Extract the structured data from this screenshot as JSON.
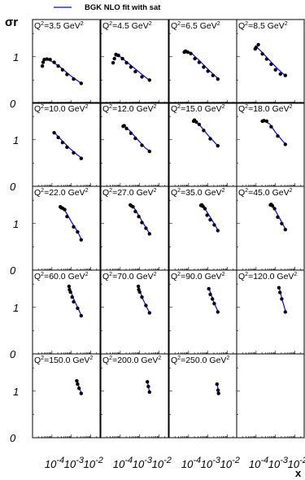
{
  "chart_data": {
    "type": "scatter",
    "legend": {
      "label": "BGK NLO fit with sat",
      "color": "#0000ff",
      "position": "top-center"
    },
    "ylabel": "σr",
    "xlabel": "x",
    "x_tick_labels": [
      "10",
      "-4",
      "10",
      "-3",
      "10",
      "-2"
    ],
    "y_tick_labels": [
      "0",
      "1"
    ],
    "xscale": "log",
    "xlim": [
      1e-05,
      0.03
    ],
    "ylim": [
      0,
      1.8
    ],
    "grid": false,
    "colors": {
      "data": "#000000",
      "fit": "#0000ff",
      "frame": "#000000"
    },
    "panels": [
      {
        "label_prefix": "Q",
        "label_sup": "2",
        "label_value": "=3.5 GeV",
        "label_unit_sup": "2",
        "points": [
          [
            3.2e-05,
            0.8
          ],
          [
            3.5e-05,
            0.88
          ],
          [
            4e-05,
            0.94
          ],
          [
            5.5e-05,
            0.95
          ],
          [
            8e-05,
            0.94
          ],
          [
            0.00013,
            0.88
          ],
          [
            0.00021,
            0.8
          ],
          [
            0.00035,
            0.72
          ],
          [
            0.0006,
            0.62
          ],
          [
            0.0013,
            0.52
          ],
          [
            0.0032,
            0.43
          ]
        ],
        "fit": [
          [
            4e-05,
            0.96
          ],
          [
            0.0001,
            0.9
          ],
          [
            0.0003,
            0.76
          ],
          [
            0.001,
            0.58
          ],
          [
            0.0035,
            0.42
          ]
        ]
      },
      {
        "label_prefix": "Q",
        "label_sup": "2",
        "label_value": "=4.5 GeV",
        "label_unit_sup": "2",
        "points": [
          [
            4.3e-05,
            0.87
          ],
          [
            5e-05,
            0.96
          ],
          [
            6e-05,
            1.05
          ],
          [
            8e-05,
            1.03
          ],
          [
            0.00013,
            0.96
          ],
          [
            0.00021,
            0.87
          ],
          [
            0.00035,
            0.78
          ],
          [
            0.0006,
            0.68
          ],
          [
            0.0013,
            0.57
          ],
          [
            0.0032,
            0.5
          ]
        ],
        "fit": [
          [
            5e-05,
            1.02
          ],
          [
            0.0001,
            1.0
          ],
          [
            0.0003,
            0.84
          ],
          [
            0.001,
            0.66
          ],
          [
            0.0035,
            0.48
          ]
        ]
      },
      {
        "label_prefix": "Q",
        "label_sup": "2",
        "label_value": "=6.5 GeV",
        "label_unit_sup": "2",
        "points": [
          [
            6e-05,
            1.1
          ],
          [
            7e-05,
            1.12
          ],
          [
            9e-05,
            1.1
          ],
          [
            0.00013,
            1.07
          ],
          [
            0.00021,
            0.96
          ],
          [
            0.00035,
            0.88
          ],
          [
            0.0006,
            0.78
          ],
          [
            0.001,
            0.69
          ],
          [
            0.0018,
            0.6
          ],
          [
            0.0032,
            0.52
          ]
        ],
        "fit": [
          [
            6e-05,
            1.15
          ],
          [
            0.00013,
            1.09
          ],
          [
            0.0004,
            0.9
          ],
          [
            0.0012,
            0.7
          ],
          [
            0.0035,
            0.52
          ]
        ]
      },
      {
        "label_prefix": "Q",
        "label_sup": "2",
        "label_value": "=8.5 GeV",
        "label_unit_sup": "2",
        "points": [
          [
            9e-05,
            1.17
          ],
          [
            0.0001,
            1.2
          ],
          [
            0.00013,
            1.26
          ],
          [
            0.00021,
            1.06
          ],
          [
            0.00035,
            0.95
          ],
          [
            0.0006,
            0.84
          ],
          [
            0.001,
            0.72
          ],
          [
            0.0018,
            0.63
          ],
          [
            0.0032,
            0.6
          ]
        ],
        "fit": [
          [
            9e-05,
            1.24
          ],
          [
            0.0002,
            1.1
          ],
          [
            0.0005,
            0.92
          ],
          [
            0.0013,
            0.74
          ],
          [
            0.0035,
            0.58
          ]
        ]
      },
      {
        "label_prefix": "Q",
        "label_sup": "2",
        "label_value": "=10.0 GeV",
        "label_unit_sup": "2",
        "points": [
          [
            0.00013,
            1.15
          ],
          [
            0.00021,
            1.05
          ],
          [
            0.00035,
            0.94
          ],
          [
            0.0006,
            0.84
          ],
          [
            0.0013,
            0.72
          ],
          [
            0.0032,
            0.6
          ]
        ],
        "fit": [
          [
            0.00013,
            1.16
          ],
          [
            0.0003,
            1.0
          ],
          [
            0.0008,
            0.82
          ],
          [
            0.002,
            0.68
          ],
          [
            0.0035,
            0.6
          ]
        ]
      },
      {
        "label_prefix": "Q",
        "label_sup": "2",
        "label_value": "=12.0 GeV",
        "label_unit_sup": "2",
        "points": [
          [
            0.00014,
            1.29
          ],
          [
            0.00016,
            1.3
          ],
          [
            0.00021,
            1.24
          ],
          [
            0.00035,
            1.14
          ],
          [
            0.0006,
            1.03
          ],
          [
            0.0013,
            0.88
          ],
          [
            0.0032,
            0.75
          ]
        ],
        "fit": [
          [
            0.00014,
            1.31
          ],
          [
            0.0003,
            1.2
          ],
          [
            0.0008,
            1.0
          ],
          [
            0.002,
            0.82
          ],
          [
            0.0035,
            0.75
          ]
        ]
      },
      {
        "label_prefix": "Q",
        "label_sup": "2",
        "label_value": "=15.0 GeV",
        "label_unit_sup": "2",
        "points": [
          [
            0.00018,
            1.4
          ],
          [
            0.0002,
            1.42
          ],
          [
            0.00025,
            1.38
          ],
          [
            0.00035,
            1.33
          ],
          [
            0.0006,
            1.2
          ],
          [
            0.0013,
            1.02
          ],
          [
            0.0032,
            0.87
          ]
        ],
        "fit": [
          [
            0.00018,
            1.42
          ],
          [
            0.0004,
            1.3
          ],
          [
            0.001,
            1.1
          ],
          [
            0.0025,
            0.92
          ],
          [
            0.0035,
            0.86
          ]
        ]
      },
      {
        "label_prefix": "Q",
        "label_sup": "2",
        "label_value": "=18.0 GeV",
        "label_unit_sup": "2",
        "points": [
          [
            0.00021,
            1.4
          ],
          [
            0.00025,
            1.41
          ],
          [
            0.00035,
            1.4
          ],
          [
            0.0006,
            1.28
          ],
          [
            0.0013,
            1.08
          ],
          [
            0.0032,
            0.9
          ]
        ],
        "fit": [
          [
            0.00021,
            1.42
          ],
          [
            0.0005,
            1.34
          ],
          [
            0.001,
            1.16
          ],
          [
            0.0025,
            0.96
          ],
          [
            0.0035,
            0.9
          ]
        ]
      },
      {
        "label_prefix": "Q",
        "label_sup": "2",
        "label_value": "=22.0 GeV",
        "label_unit_sup": "2",
        "points": [
          [
            0.00027,
            1.36
          ],
          [
            0.0003,
            1.34
          ],
          [
            0.00035,
            1.33
          ],
          [
            0.00045,
            1.3
          ],
          [
            0.0006,
            1.15
          ],
          [
            0.0013,
            0.93
          ],
          [
            0.0021,
            0.82
          ],
          [
            0.0032,
            0.65
          ]
        ],
        "fit": [
          [
            0.00027,
            1.38
          ],
          [
            0.0005,
            1.26
          ],
          [
            0.001,
            1.04
          ],
          [
            0.002,
            0.84
          ],
          [
            0.0035,
            0.64
          ]
        ]
      },
      {
        "label_prefix": "Q",
        "label_sup": "2",
        "label_value": "=27.0 GeV",
        "label_unit_sup": "2",
        "points": [
          [
            0.00033,
            1.4
          ],
          [
            0.00037,
            1.38
          ],
          [
            0.00045,
            1.36
          ],
          [
            0.0006,
            1.26
          ],
          [
            0.0009,
            1.15
          ],
          [
            0.0013,
            1.02
          ],
          [
            0.0021,
            0.9
          ],
          [
            0.0032,
            0.78
          ]
        ],
        "fit": [
          [
            0.00033,
            1.43
          ],
          [
            0.0006,
            1.3
          ],
          [
            0.0012,
            1.08
          ],
          [
            0.0022,
            0.9
          ],
          [
            0.0035,
            0.76
          ]
        ]
      },
      {
        "label_prefix": "Q",
        "label_sup": "2",
        "label_value": "=35.0 GeV",
        "label_unit_sup": "2",
        "points": [
          [
            0.00043,
            1.39
          ],
          [
            0.00048,
            1.4
          ],
          [
            0.00055,
            1.37
          ],
          [
            0.0007,
            1.32
          ],
          [
            0.0009,
            1.18
          ],
          [
            0.0013,
            1.08
          ],
          [
            0.0021,
            0.97
          ],
          [
            0.0032,
            0.85
          ]
        ],
        "fit": [
          [
            0.00043,
            1.42
          ],
          [
            0.0008,
            1.28
          ],
          [
            0.0015,
            1.1
          ],
          [
            0.0025,
            0.94
          ],
          [
            0.0035,
            0.84
          ]
        ]
      },
      {
        "label_prefix": "Q",
        "label_sup": "2",
        "label_value": "=45.0 GeV",
        "label_unit_sup": "2",
        "points": [
          [
            0.00055,
            1.4
          ],
          [
            0.0006,
            1.41
          ],
          [
            0.0007,
            1.38
          ],
          [
            0.0009,
            1.32
          ],
          [
            0.0013,
            1.14
          ],
          [
            0.0021,
            1.0
          ],
          [
            0.0032,
            0.87
          ]
        ],
        "fit": [
          [
            0.00055,
            1.42
          ],
          [
            0.001,
            1.28
          ],
          [
            0.0018,
            1.08
          ],
          [
            0.0035,
            0.86
          ]
        ]
      },
      {
        "label_prefix": "Q",
        "label_sup": "2",
        "label_value": "=60.0 GeV",
        "label_unit_sup": "2",
        "points": [
          [
            0.00075,
            1.45
          ],
          [
            0.0008,
            1.38
          ],
          [
            0.0009,
            1.33
          ],
          [
            0.0011,
            1.22
          ],
          [
            0.0013,
            1.12
          ],
          [
            0.0021,
            0.98
          ],
          [
            0.0032,
            0.82
          ]
        ],
        "fit": [
          [
            0.00075,
            1.48
          ],
          [
            0.0012,
            1.22
          ],
          [
            0.002,
            1.02
          ],
          [
            0.0035,
            0.8
          ]
        ]
      },
      {
        "label_prefix": "Q",
        "label_sup": "2",
        "label_value": "=70.0 GeV",
        "label_unit_sup": "2",
        "points": [
          [
            0.00085,
            1.45
          ],
          [
            0.0009,
            1.38
          ],
          [
            0.001,
            1.33
          ],
          [
            0.0013,
            1.22
          ],
          [
            0.0021,
            1.04
          ],
          [
            0.0032,
            0.88
          ]
        ],
        "fit": [
          [
            0.00085,
            1.48
          ],
          [
            0.0013,
            1.22
          ],
          [
            0.0022,
            1.02
          ],
          [
            0.0035,
            0.86
          ]
        ]
      },
      {
        "label_prefix": "Q",
        "label_sup": "2",
        "label_value": "=90.0 GeV",
        "label_unit_sup": "2",
        "points": [
          [
            0.0011,
            1.4
          ],
          [
            0.0013,
            1.28
          ],
          [
            0.0017,
            1.18
          ],
          [
            0.0021,
            1.08
          ],
          [
            0.0032,
            0.9
          ]
        ],
        "fit": [
          [
            0.0011,
            1.42
          ],
          [
            0.0018,
            1.16
          ],
          [
            0.0035,
            0.88
          ]
        ]
      },
      {
        "label_prefix": "Q",
        "label_sup": "2",
        "label_value": "=120.0 GeV",
        "label_unit_sup": "2",
        "points": [
          [
            0.0015,
            1.42
          ],
          [
            0.0017,
            1.32
          ],
          [
            0.0021,
            1.18
          ],
          [
            0.0032,
            0.9
          ]
        ],
        "fit": [
          [
            0.0015,
            1.45
          ],
          [
            0.0022,
            1.16
          ],
          [
            0.0035,
            0.88
          ]
        ]
      },
      {
        "label_prefix": "Q",
        "label_sup": "2",
        "label_value": "=150.0 GeV",
        "label_unit_sup": "2",
        "points": [
          [
            0.0019,
            1.22
          ],
          [
            0.0021,
            1.15
          ],
          [
            0.0025,
            1.06
          ],
          [
            0.0032,
            0.95
          ]
        ],
        "fit": [
          [
            0.0019,
            1.25
          ],
          [
            0.0026,
            1.06
          ],
          [
            0.0035,
            0.93
          ]
        ]
      },
      {
        "label_prefix": "Q",
        "label_sup": "2",
        "label_value": "=200.0 GeV",
        "label_unit_sup": "2",
        "points": [
          [
            0.0025,
            1.2
          ],
          [
            0.0028,
            1.1
          ],
          [
            0.0032,
            0.98
          ]
        ],
        "fit": [
          [
            0.0025,
            1.22
          ],
          [
            0.003,
            1.04
          ],
          [
            0.0035,
            0.95
          ]
        ]
      },
      {
        "label_prefix": "Q",
        "label_sup": "2",
        "label_value": "=250.0 GeV",
        "label_unit_sup": "2",
        "points": [
          [
            0.0029,
            1.15
          ],
          [
            0.0033,
            1.02
          ],
          [
            0.0035,
            0.95
          ]
        ],
        "fit": [
          [
            0.0029,
            1.18
          ],
          [
            0.0033,
            1.04
          ],
          [
            0.0036,
            0.94
          ]
        ]
      },
      {
        "label_prefix": "",
        "label_sup": "",
        "label_value": "",
        "label_unit_sup": "",
        "points": [],
        "fit": []
      }
    ]
  }
}
